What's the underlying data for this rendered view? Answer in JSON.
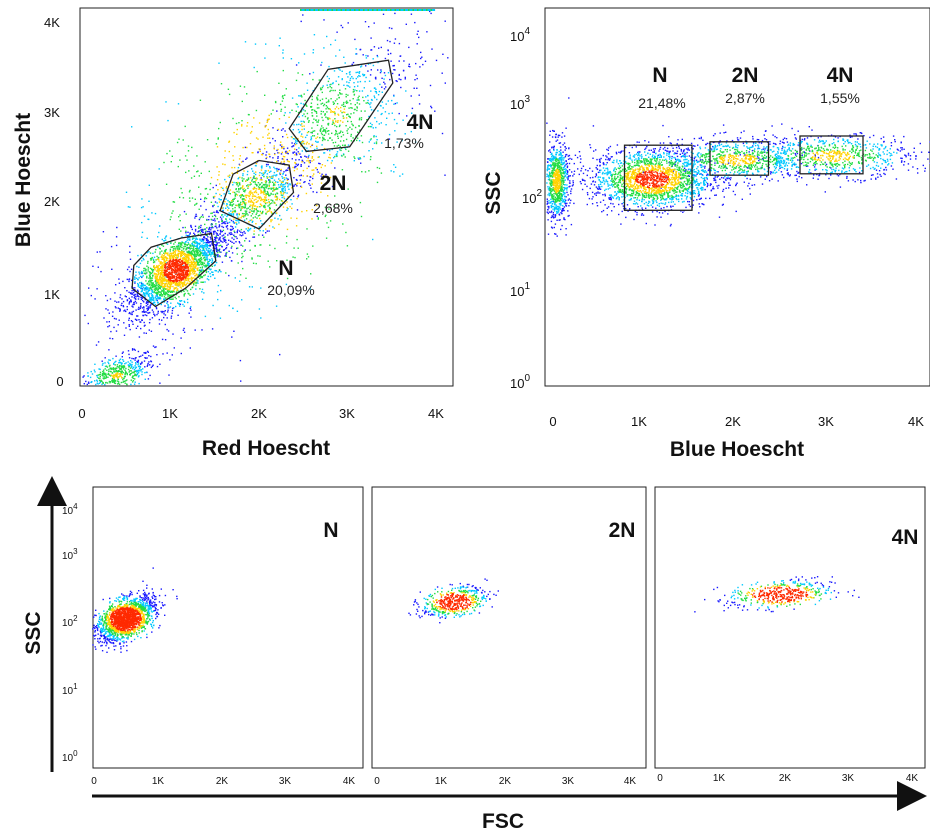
{
  "chart_data": [
    {
      "type": "scatter",
      "plot_style": "flow cytometry density dot plot",
      "xlabel": "Red Hoescht",
      "ylabel": "Blue Hoescht",
      "xlim": [
        0,
        4100
      ],
      "ylim": [
        0,
        4100
      ],
      "x_ticks": [
        "0",
        "1K",
        "2K",
        "3K",
        "4K"
      ],
      "y_ticks": [
        "0",
        "1K",
        "2K",
        "3K",
        "4K"
      ],
      "gates": [
        {
          "label": "N",
          "percent": "20,09%",
          "shape": "polygon",
          "vertices": [
            [
              580,
              1050
            ],
            [
              850,
              850
            ],
            [
              1200,
              1050
            ],
            [
              1550,
              1350
            ],
            [
              1500,
              1650
            ],
            [
              1150,
              1600
            ],
            [
              800,
              1500
            ],
            [
              600,
              1300
            ]
          ]
        },
        {
          "label": "2N",
          "percent": "2,68%",
          "shape": "polygon",
          "vertices": [
            [
              1600,
              1900
            ],
            [
              2050,
              1700
            ],
            [
              2450,
              2100
            ],
            [
              2400,
              2400
            ],
            [
              2050,
              2450
            ],
            [
              1750,
              2300
            ]
          ]
        },
        {
          "label": "4N",
          "percent": "1,73%",
          "shape": "polygon",
          "vertices": [
            [
              2400,
              2800
            ],
            [
              2850,
              3450
            ],
            [
              3550,
              3550
            ],
            [
              3600,
              3300
            ],
            [
              3100,
              2600
            ],
            [
              2600,
              2550
            ]
          ]
        }
      ],
      "populations": [
        {
          "x": 400,
          "y": 100,
          "sx": 220,
          "sy": 120,
          "weight": 0.1,
          "corr": 0.6
        },
        {
          "x": 1080,
          "y": 1250,
          "sx": 270,
          "sy": 230,
          "weight": 0.44,
          "corr": 0.7
        },
        {
          "x": 2000,
          "y": 2050,
          "sx": 280,
          "sy": 230,
          "weight": 0.14,
          "corr": 0.6
        },
        {
          "x": 2950,
          "y": 2950,
          "sx": 380,
          "sy": 330,
          "weight": 0.1,
          "corr": 0.6
        },
        {
          "x": 2200,
          "y": 2300,
          "sx": 1100,
          "sy": 1000,
          "weight": 0.22,
          "corr": 0.8
        }
      ]
    },
    {
      "type": "scatter",
      "plot_style": "flow cytometry density dot plot",
      "xlabel": "Blue Hoescht",
      "ylabel": "SSC",
      "xlim": [
        0,
        4100
      ],
      "ylim": [
        1,
        20000
      ],
      "y_scale": "log",
      "x_ticks": [
        "0",
        "1K",
        "2K",
        "3K",
        "4K"
      ],
      "y_ticks": [
        "10^0",
        "10^1",
        "10^2",
        "10^3",
        "10^4"
      ],
      "gates": [
        {
          "label": "N",
          "percent": "21,48%",
          "shape": "rectangle",
          "x": [
            850,
            1600
          ],
          "y": [
            100,
            550
          ]
        },
        {
          "label": "2N",
          "percent": "2,87%",
          "shape": "rectangle",
          "x": [
            1800,
            2450
          ],
          "y": [
            250,
            600
          ]
        },
        {
          "label": "4N",
          "percent": "1,55%",
          "shape": "rectangle",
          "x": [
            2800,
            3500
          ],
          "y": [
            260,
            700
          ]
        }
      ],
      "populations": [
        {
          "x": 90,
          "y": 220,
          "sx": 70,
          "sy": 0.22,
          "weight": 0.2,
          "corr": 0
        },
        {
          "x": 1150,
          "y": 230,
          "sx": 330,
          "sy": 0.17,
          "weight": 0.45,
          "corr": 0
        },
        {
          "x": 2100,
          "y": 380,
          "sx": 380,
          "sy": 0.12,
          "weight": 0.18,
          "corr": 0
        },
        {
          "x": 3150,
          "y": 420,
          "sx": 450,
          "sy": 0.12,
          "weight": 0.17,
          "corr": 0
        }
      ]
    },
    {
      "type": "scatter",
      "plot_style": "flow cytometry density dot plot",
      "panel_label": "N",
      "xlabel": "FSC",
      "ylabel": "SSC",
      "xlim": [
        0,
        4100
      ],
      "ylim": [
        1,
        20000
      ],
      "y_scale": "log",
      "x_ticks": [
        "0",
        "1K",
        "2K",
        "3K",
        "4K"
      ],
      "y_ticks": [
        "10^0",
        "10^1",
        "10^2",
        "10^3",
        "10^4"
      ],
      "populations": [
        {
          "x": 500,
          "y": 200,
          "sx": 230,
          "sy": 0.17,
          "weight": 1.0,
          "corr": 0.5
        }
      ]
    },
    {
      "type": "scatter",
      "plot_style": "flow cytometry density dot plot",
      "panel_label": "2N",
      "xlabel": "FSC",
      "ylabel": "SSC",
      "xlim": [
        0,
        4100
      ],
      "ylim": [
        1,
        20000
      ],
      "y_scale": "log",
      "x_ticks": [
        "0",
        "1K",
        "2K",
        "3K",
        "4K"
      ],
      "populations": [
        {
          "x": 1250,
          "y": 370,
          "sx": 260,
          "sy": 0.12,
          "weight": 1.0,
          "corr": 0.4
        }
      ]
    },
    {
      "type": "scatter",
      "plot_style": "flow cytometry density dot plot",
      "panel_label": "4N",
      "xlabel": "FSC",
      "ylabel": "SSC",
      "xlim": [
        0,
        4100
      ],
      "ylim": [
        1,
        20000
      ],
      "y_scale": "log",
      "x_ticks": [
        "0",
        "1K",
        "2K",
        "3K",
        "4K"
      ],
      "populations": [
        {
          "x": 1950,
          "y": 480,
          "sx": 420,
          "sy": 0.11,
          "weight": 1.0,
          "corr": 0.3
        }
      ]
    }
  ],
  "colors": {
    "sparse": "#1a1aff",
    "low": "#00c8ff",
    "mid": "#22dd44",
    "high": "#ffd200",
    "peak": "#ff2a00",
    "gate_line": "#222222"
  },
  "labels": {
    "bottom_ylabel": "SSC",
    "bottom_xlabel": "FSC"
  }
}
